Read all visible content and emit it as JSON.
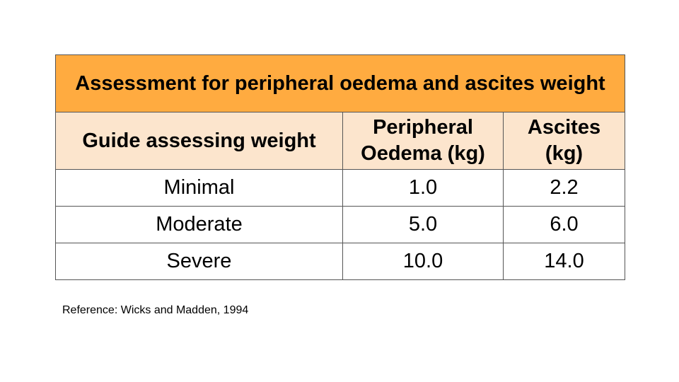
{
  "table": {
    "title": "Assessment for peripheral oedema and ascites weight",
    "headers": [
      "Guide assessing weight",
      "Peripheral Oedema (kg)",
      "Ascites (kg)"
    ],
    "rows": [
      [
        "Minimal",
        "1.0",
        "2.2"
      ],
      [
        "Moderate",
        "5.0",
        "6.0"
      ],
      [
        "Severe",
        "10.0",
        "14.0"
      ]
    ]
  },
  "reference": "Reference: Wicks and Madden, 1994",
  "colors": {
    "title_background": "#ffab40",
    "header_background": "#fce5cd",
    "border": "#555555"
  }
}
